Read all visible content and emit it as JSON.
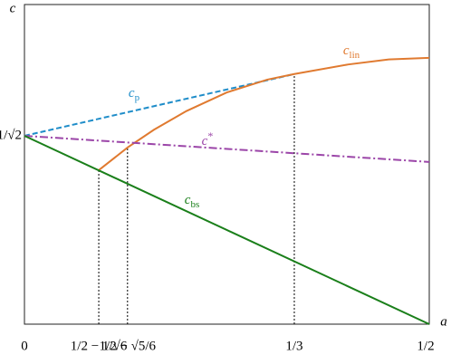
{
  "chart_data": {
    "type": "line",
    "x_label": "a",
    "y_label": "c",
    "xlim": [
      0,
      0.5
    ],
    "ylim": [
      0,
      1.2
    ],
    "xticks": [
      0,
      {
        "value": 0.0918,
        "label": "1/2 − 1/√6"
      },
      {
        "value": 0.1273,
        "label": "1/2 − √5/6"
      },
      {
        "value": 0.3333,
        "label": "1/3"
      },
      {
        "value": 0.5,
        "label": "1/2"
      }
    ],
    "yticks": [
      {
        "value": 0.7071,
        "label": "1/√2"
      }
    ],
    "grid": false,
    "series": [
      {
        "name": "c",
        "subscript": "p",
        "color": "#1f8dc9",
        "dash": "dashed",
        "x": [
          0,
          0.3333
        ],
        "values": [
          0.7071,
          0.939
        ]
      },
      {
        "name": "c",
        "subscript": "lin",
        "color": "#e07a30",
        "dash": "solid",
        "x": [
          0.0918,
          0.1273,
          0.16,
          0.2,
          0.25,
          0.3,
          0.3333,
          0.4,
          0.45,
          0.5
        ],
        "values": [
          0.578,
          0.663,
          0.73,
          0.8,
          0.87,
          0.918,
          0.939,
          0.975,
          0.994,
          1.0
        ]
      },
      {
        "name": "c",
        "superscript": "*",
        "color": "#9b45a8",
        "dash": "dashdot",
        "x": [
          0,
          0.5
        ],
        "values": [
          0.7071,
          0.609
        ]
      },
      {
        "name": "c",
        "subscript": "bs",
        "color": "#1a7f1a",
        "dash": "solid",
        "x": [
          0,
          0.5
        ],
        "values": [
          0.7071,
          0
        ]
      }
    ],
    "reference_lines": [
      {
        "x": 0.0918,
        "y": 0.578
      },
      {
        "x": 0.1273,
        "y": 0.663
      },
      {
        "x": 0.3333,
        "y": 0.939
      }
    ]
  }
}
